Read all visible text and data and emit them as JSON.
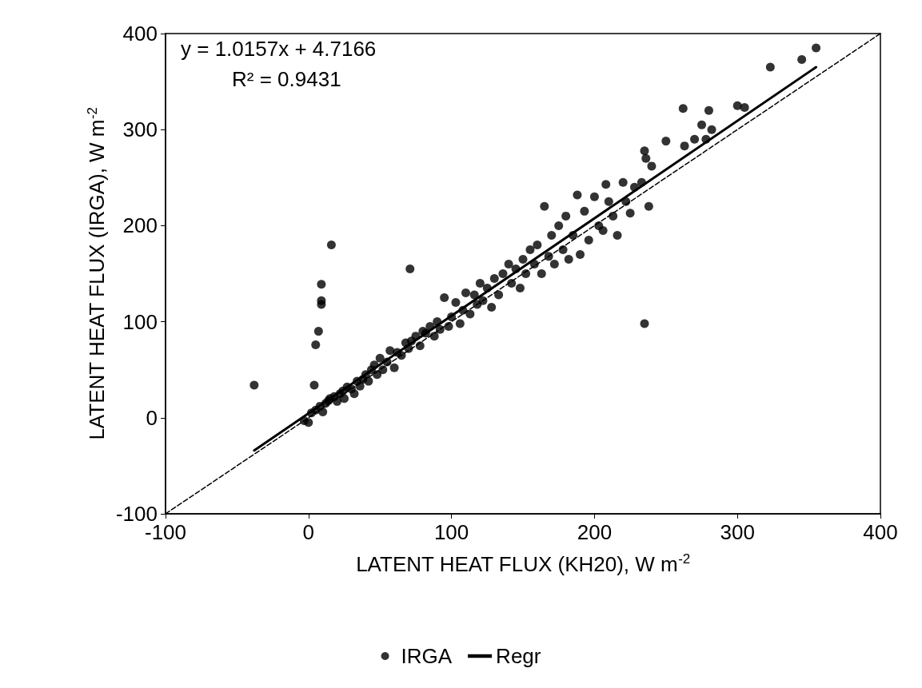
{
  "chart_data": {
    "type": "scatter",
    "xlabel": "LATENT HEAT FLUX (KH20), W m$^{-2}$",
    "ylabel": "LATENT HEAT FLUX (IRGA), W m$^{-2}$",
    "annotations": [
      "y = 1.0157x + 4.7166",
      "R² = 0.9431"
    ],
    "xlim": [
      -100,
      400
    ],
    "xticks": [
      -100,
      0,
      100,
      200,
      300,
      400
    ],
    "ylim": [
      -100,
      400
    ],
    "yticks": [
      -100,
      0,
      100,
      200,
      300,
      400
    ],
    "grid": false,
    "legend": "bottom",
    "marker": "circle",
    "series": [
      {
        "name": "IRGA",
        "color": "#000000",
        "x": [
          -38,
          4,
          5,
          7,
          9,
          9,
          9,
          16,
          71,
          235,
          -3,
          0,
          2,
          5,
          8,
          10,
          12,
          14,
          15,
          18,
          20,
          22,
          24,
          25,
          27,
          30,
          32,
          34,
          36,
          38,
          40,
          42,
          44,
          46,
          48,
          50,
          52,
          55,
          57,
          60,
          62,
          65,
          68,
          70,
          72,
          75,
          78,
          80,
          82,
          85,
          88,
          90,
          92,
          95,
          98,
          100,
          103,
          106,
          108,
          110,
          113,
          116,
          118,
          120,
          122,
          125,
          128,
          130,
          133,
          136,
          140,
          142,
          145,
          148,
          150,
          152,
          155,
          158,
          160,
          163,
          165,
          168,
          170,
          172,
          175,
          178,
          180,
          182,
          185,
          188,
          190,
          193,
          196,
          200,
          203,
          206,
          208,
          210,
          213,
          216,
          220,
          222,
          225,
          228,
          233,
          235,
          236,
          238,
          240,
          250,
          262,
          263,
          270,
          275,
          278,
          280,
          282,
          300,
          305,
          323,
          345,
          355
        ],
        "values": [
          34,
          34,
          76,
          90,
          118,
          122,
          139,
          180,
          155,
          98,
          -3,
          -5,
          5,
          8,
          12,
          6,
          15,
          18,
          20,
          22,
          17,
          25,
          28,
          20,
          32,
          30,
          25,
          38,
          33,
          40,
          45,
          38,
          50,
          55,
          45,
          62,
          50,
          58,
          70,
          52,
          68,
          65,
          78,
          72,
          80,
          85,
          75,
          90,
          88,
          95,
          85,
          100,
          92,
          125,
          95,
          105,
          120,
          98,
          112,
          130,
          108,
          128,
          118,
          140,
          122,
          135,
          115,
          145,
          128,
          150,
          160,
          140,
          155,
          135,
          165,
          150,
          175,
          160,
          180,
          150,
          220,
          168,
          190,
          160,
          200,
          175,
          210,
          165,
          190,
          232,
          170,
          215,
          185,
          230,
          200,
          195,
          243,
          225,
          210,
          190,
          245,
          225,
          213,
          240,
          245,
          278,
          270,
          220,
          262,
          288,
          322,
          283,
          290,
          305,
          290,
          320,
          300,
          325,
          323,
          365,
          373,
          385
        ]
      },
      {
        "name": "Regr",
        "type": "line",
        "color": "#000000",
        "marker": "none",
        "line_style": "solid",
        "x": [
          -38,
          355
        ],
        "values": [
          -34,
          365
        ]
      },
      {
        "type": "line",
        "color": "#000000",
        "marker": "none",
        "line_style": "dashed",
        "x": [
          -100,
          400
        ],
        "values": [
          -100,
          400
        ]
      }
    ]
  }
}
